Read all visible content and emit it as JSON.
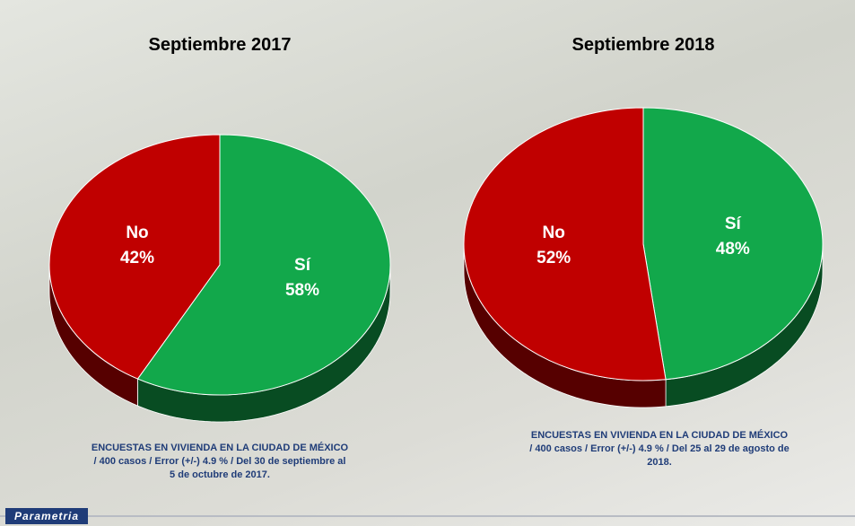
{
  "chart_data": [
    {
      "type": "pie",
      "title": "Septiembre 2017",
      "categories": [
        "Sí",
        "No"
      ],
      "values": [
        58,
        42
      ],
      "value_labels": [
        "58%",
        "42%"
      ],
      "colors": [
        "#12a84b",
        "#c00000"
      ],
      "note": "ENCUESTAS EN VIVIENDA EN LA CIUDAD DE MÉXICO / 400 casos / Error (+/-) 4.9 % / Del 30 de septiembre al 5 de octubre de 2017."
    },
    {
      "type": "pie",
      "title": "Septiembre 2018",
      "categories": [
        "Sí",
        "No"
      ],
      "values": [
        48,
        52
      ],
      "value_labels": [
        "48%",
        "52%"
      ],
      "colors": [
        "#12a84b",
        "#c00000"
      ],
      "note": "ENCUESTAS EN VIVIENDA EN LA CIUDAD DE MÉXICO / 400 casos / Error (+/-) 4.9 % / Del 25 al 29 de agosto de 2018."
    }
  ],
  "brand": "Parametria"
}
